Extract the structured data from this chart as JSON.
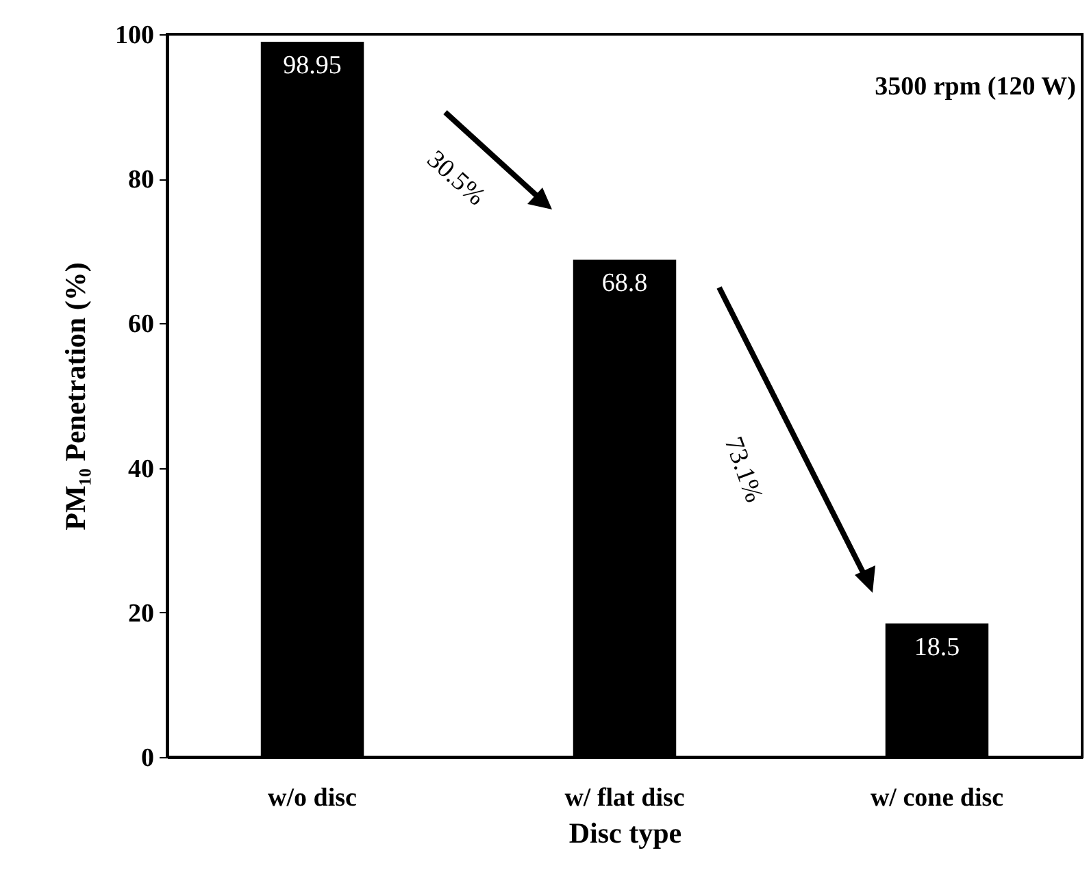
{
  "chart_data": {
    "type": "bar",
    "categories": [
      "w/o disc",
      "w/ flat disc",
      "w/ cone disc"
    ],
    "values": [
      98.95,
      68.8,
      18.5
    ],
    "color": "#000000",
    "xlabel": "Disc type",
    "ylabel": "PM₁₀ Penetration (%)",
    "ylim": [
      0,
      100
    ],
    "yticks": [
      0,
      20,
      40,
      60,
      80,
      100
    ],
    "data_labels": true,
    "annotations": [
      "3500 rpm (120 W)",
      "30.5%",
      "73.1%"
    ]
  }
}
